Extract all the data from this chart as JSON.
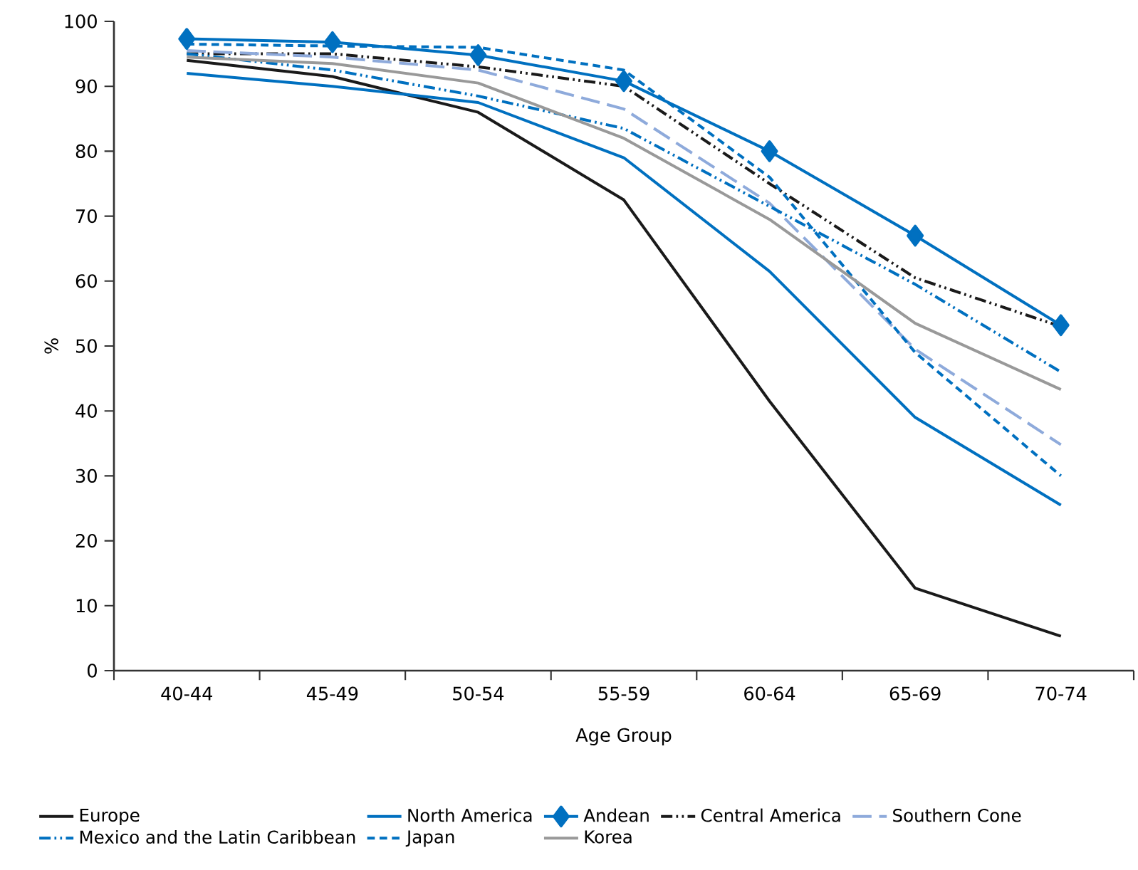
{
  "chart_data": {
    "type": "line",
    "xlabel": "Age Group",
    "ylabel": "%",
    "categories": [
      "40-44",
      "45-49",
      "50-54",
      "55-59",
      "60-64",
      "65-69",
      "70-74"
    ],
    "ylim": [
      0,
      100
    ],
    "yticks": [
      0,
      10,
      20,
      30,
      40,
      50,
      60,
      70,
      80,
      90,
      100
    ],
    "grid": false,
    "legend": "bottom",
    "series": [
      {
        "name": "Europe",
        "color": "#1a1a1a",
        "line_style": "solid",
        "values": [
          94,
          91.5,
          86,
          72.5,
          41.5,
          12.7,
          5.3
        ]
      },
      {
        "name": "North America",
        "color": "#0070c0",
        "line_style": "solid",
        "values": [
          92,
          90,
          87.5,
          79,
          61.5,
          39,
          25.5
        ]
      },
      {
        "name": "Andean",
        "color": "#0070c0",
        "line_style": "solid",
        "marker": "diamond",
        "values": [
          97.3,
          96.8,
          94.8,
          90.8,
          80,
          67,
          53.2
        ]
      },
      {
        "name": "Central America",
        "color": "#1a1a1a",
        "line_style": "dashdotdot",
        "values": [
          95,
          95,
          93,
          90,
          75,
          60.5,
          53
        ]
      },
      {
        "name": "Southern Cone",
        "color": "#8eaadb",
        "line_style": "longdashed",
        "values": [
          95.5,
          94.5,
          92.5,
          86.5,
          72,
          49.5,
          34.8
        ]
      },
      {
        "name": "Mexico and the Latin Caribbean",
        "color": "#0070c0",
        "line_style": "dashdotdot",
        "values": [
          95,
          92.5,
          88.5,
          83.5,
          71.5,
          59.5,
          46
        ]
      },
      {
        "name": "Japan",
        "color": "#0070c0",
        "line_style": "dashed",
        "values": [
          96.5,
          96.2,
          96,
          92.5,
          76,
          49,
          30
        ]
      },
      {
        "name": "Korea",
        "color": "#999999",
        "line_style": "solid",
        "values": [
          94.5,
          93.5,
          90.5,
          82,
          69.5,
          53.5,
          43.3
        ]
      }
    ]
  }
}
